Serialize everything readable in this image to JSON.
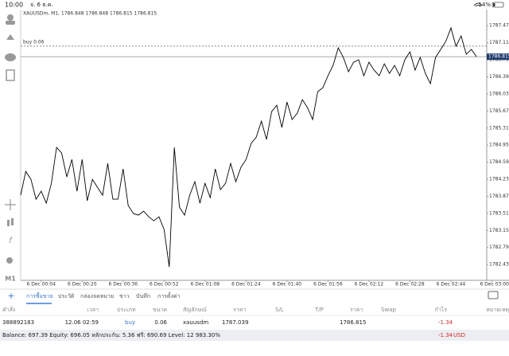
{
  "status_bar": {
    "time": "10:00",
    "date": "จ. 6 ธ.ค.",
    "battery": "14%"
  },
  "chart_data": {
    "type": "line",
    "title": "XAUUSDm, M1, 1786.848 1786.848 1786.815 1786.815",
    "timeframe": "M1",
    "color": "#000000",
    "categories": [
      null,
      null,
      null,
      null,
      "6 Dec 00:04",
      null,
      null,
      null,
      null,
      null,
      null,
      null,
      "6 Dec 00:20",
      null,
      null,
      null,
      null,
      null,
      null,
      null,
      "6 Dec 00:36",
      null,
      null,
      null,
      null,
      null,
      null,
      null,
      "6 Dec 00:52",
      null,
      null,
      null,
      null,
      null,
      null,
      null,
      "6 Dec 01:08",
      null,
      null,
      null,
      null,
      null,
      null,
      null,
      "6 Dec 01:24",
      null,
      null,
      null,
      null,
      null,
      null,
      null,
      "6 Dec 01:40",
      null,
      null,
      null,
      null,
      null,
      null,
      null,
      "6 Dec 01:56",
      null,
      null,
      null,
      null,
      null,
      null,
      null,
      "6 Dec 02:12",
      null,
      null,
      null,
      null,
      null,
      null,
      null,
      "6 Dec 02:28",
      null,
      null,
      null,
      null,
      null,
      null,
      null,
      "6 Dec 02:44",
      null,
      null,
      null,
      null,
      null,
      null,
      null,
      "6 Dec 03:00"
    ],
    "values": [
      1783.892,
      1784.396,
      1784.228,
      1783.808,
      1783.976,
      1783.724,
      1784.144,
      1784.901,
      1784.783,
      1784.279,
      1784.648,
      1783.976,
      1784.648,
      1783.775,
      1784.228,
      1784.06,
      1783.892,
      1784.564,
      1783.808,
      1783.808,
      1784.447,
      1783.674,
      1783.506,
      1783.472,
      1783.556,
      1783.438,
      1783.354,
      1783.438,
      1783.17,
      1782.38,
      1784.901,
      1783.64,
      1783.472,
      1783.892,
      1784.178,
      1783.724,
      1784.144,
      1783.842,
      1784.447,
      1784.01,
      1784.144,
      1784.564,
      1784.178,
      1784.48,
      1784.648,
      1784.985,
      1785.119,
      1785.455,
      1785.069,
      1785.657,
      1785.791,
      1785.321,
      1785.859,
      1785.489,
      1785.623,
      1785.909,
      1785.741,
      1785.489,
      1786.077,
      1786.161,
      1786.413,
      1786.632,
      1787.002,
      1786.8,
      1786.497,
      1786.699,
      1786.749,
      1786.413,
      1786.699,
      1786.531,
      1786.413,
      1786.665,
      1786.464,
      1786.632,
      1786.413,
      1786.749,
      1786.917,
      1786.531,
      1786.8,
      1786.464,
      1786.245,
      1786.8,
      1786.968,
      1787.136,
      1787.422,
      1787.035,
      1787.254,
      1786.867,
      1786.968,
      1786.815,
      null,
      null,
      null
    ],
    "ylim": [
      1782.13,
      1787.81
    ],
    "yticks": [
      {
        "value": 1782.43,
        "label": "1782.430"
      },
      {
        "value": 1782.79,
        "label": "1782.790"
      },
      {
        "value": 1783.15,
        "label": "1783.150"
      },
      {
        "value": 1783.51,
        "label": "1783.510"
      },
      {
        "value": 1783.87,
        "label": "1783.870"
      },
      {
        "value": 1784.23,
        "label": "1784.230"
      },
      {
        "value": 1784.59,
        "label": "1784.590"
      },
      {
        "value": 1784.95,
        "label": "1784.950"
      },
      {
        "value": 1785.31,
        "label": "1785.310"
      },
      {
        "value": 1785.67,
        "label": "1785.670"
      },
      {
        "value": 1786.03,
        "label": "1786.030"
      },
      {
        "value": 1786.39,
        "label": "1786.390"
      },
      {
        "value": 1786.75,
        "label": "1786.750"
      },
      {
        "value": 1787.11,
        "label": "1787.110"
      },
      {
        "value": 1787.47,
        "label": "1787.470"
      }
    ],
    "current_price": 1786.815,
    "order_line_label": "buy 0.06"
  },
  "tabs": [
    "การซื้อขาย",
    "ประวัติ",
    "กล่องจดหมาย",
    "ข่าว",
    "บันทึก",
    "การตั้งค่า"
  ],
  "table": {
    "headers": [
      "คำสั่ง",
      "เวลา",
      "ประเภท",
      "ขนาด",
      "สัญลักษณ์",
      "ราคา",
      "S/L",
      "T/P",
      "ราคา",
      "Swap",
      "กำไร",
      "หมายเหตุ"
    ],
    "rows": [
      {
        "order": "388892183",
        "time": "12.06 02:59",
        "type": "buy",
        "volume": "0.06",
        "symbol": "xauusdm",
        "open_price": 1787.039,
        "price": 1786.815,
        "profit": "-1.34"
      }
    ]
  },
  "footer": {
    "summary": "Balance: 697.39 Equity: 696.05 หลักประกัน: 5.36 ฟรี: 690.69 Level: 12 983.30%",
    "profit": "-1.34",
    "currency": "USD"
  }
}
